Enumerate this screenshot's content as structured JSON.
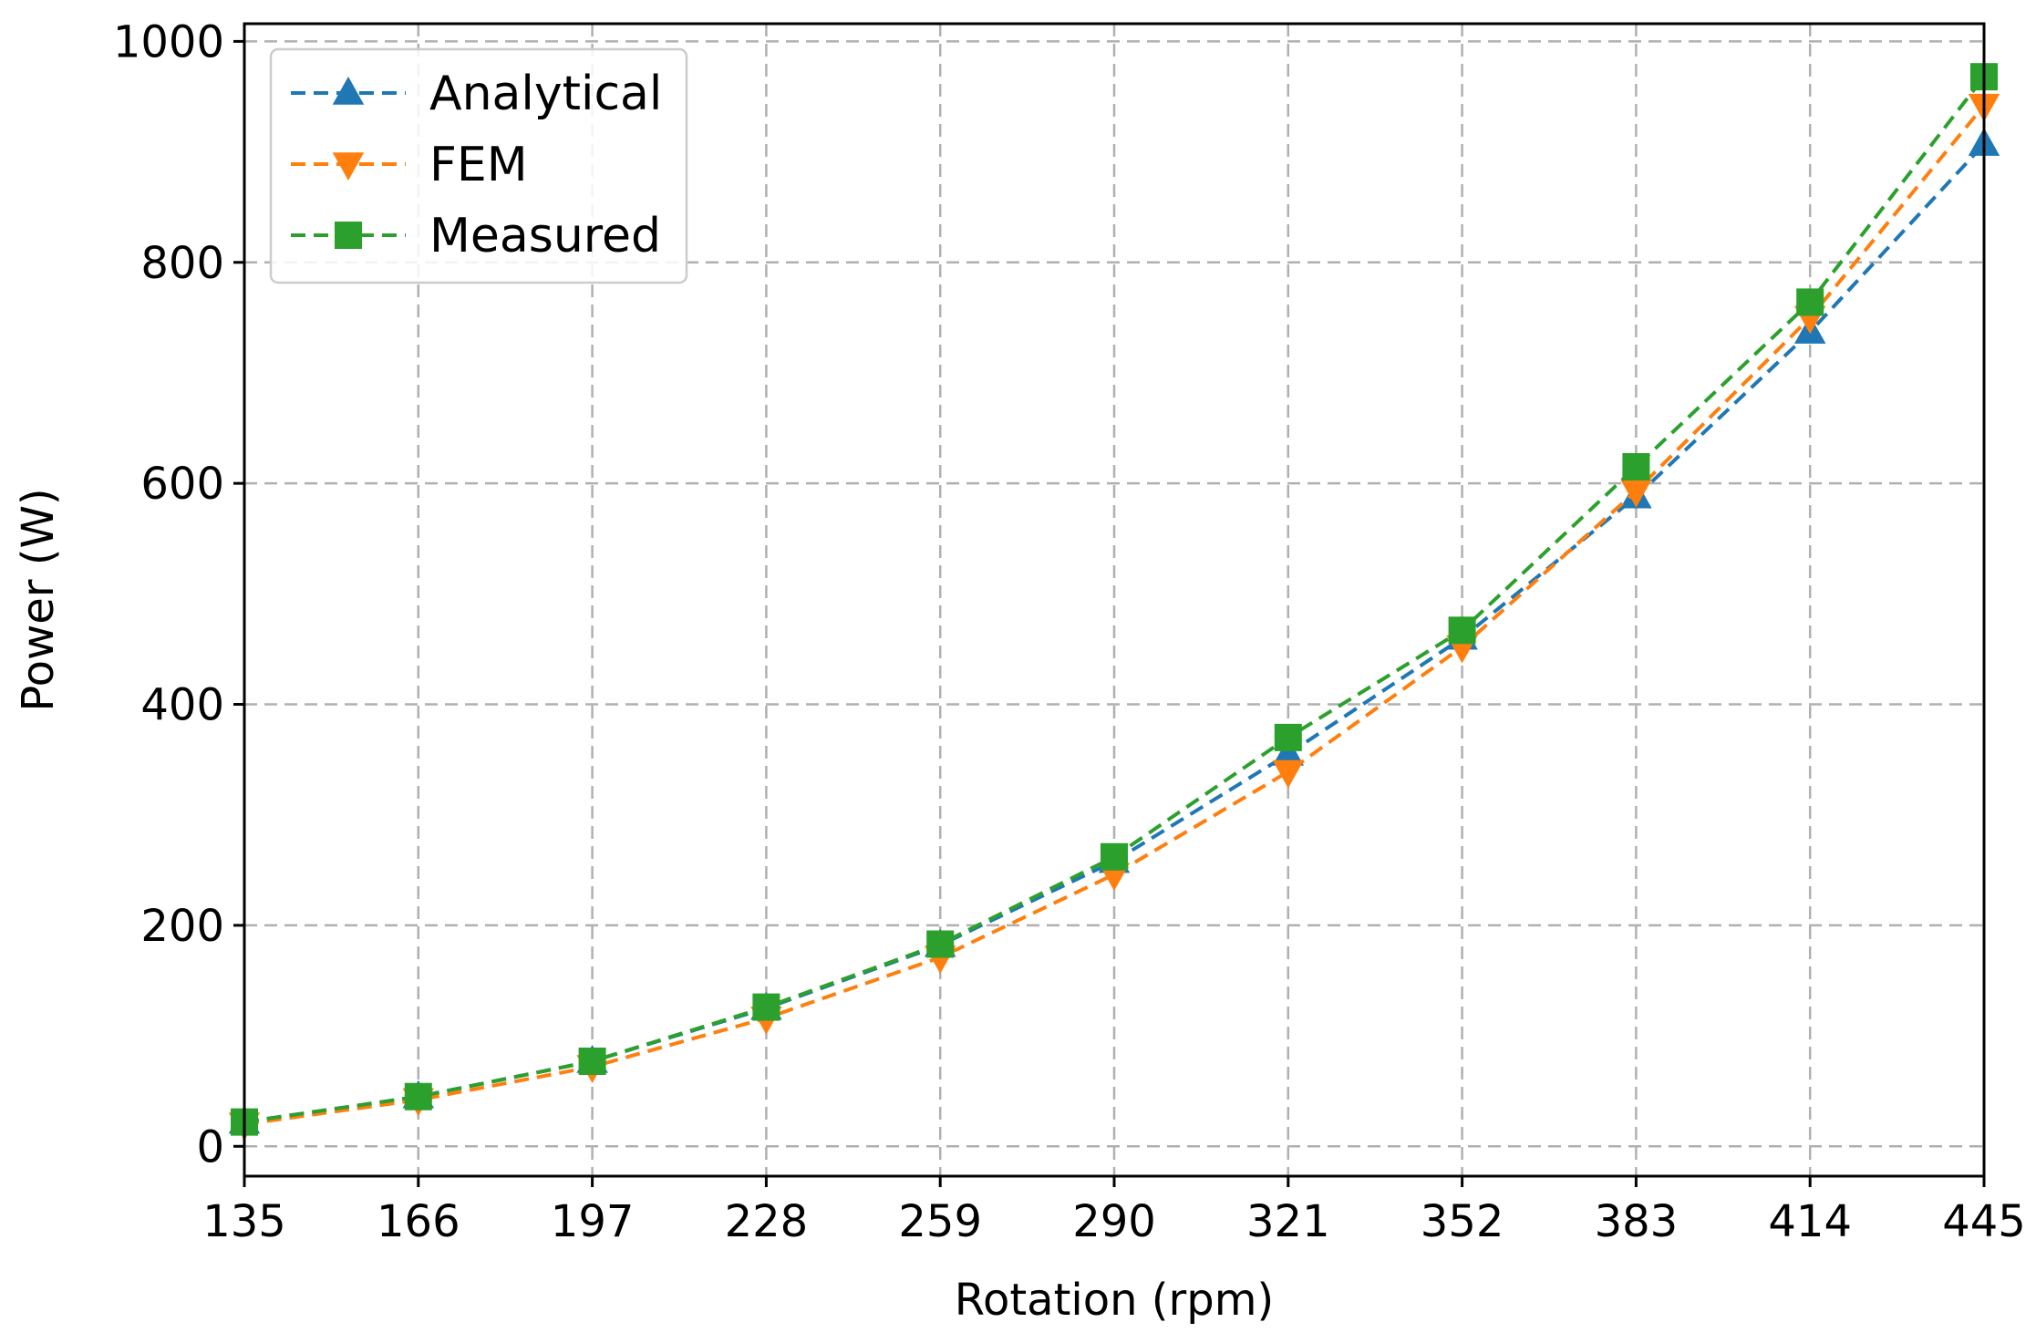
{
  "chart_data": {
    "type": "line",
    "title": "",
    "xlabel": "Rotation (rpm)",
    "ylabel": "Power (W)",
    "x": [
      135,
      166,
      197,
      228,
      259,
      290,
      321,
      352,
      383,
      414,
      445
    ],
    "xticks": [
      "135",
      "166",
      "197",
      "228",
      "259",
      "290",
      "321",
      "352",
      "383",
      "414",
      "445"
    ],
    "yticks": [
      "0",
      "200",
      "400",
      "600",
      "800",
      "1000"
    ],
    "xlim": [
      135,
      445
    ],
    "ylim": [
      -27,
      1016
    ],
    "grid": true,
    "legend_position": "top-left",
    "series": [
      {
        "name": "Analytical",
        "marker": "triangle-up",
        "color": "#1f77b4",
        "values": [
          22,
          45,
          77,
          125,
          182,
          258,
          355,
          460,
          588,
          737,
          907
        ]
      },
      {
        "name": "FEM",
        "marker": "triangle-down",
        "color": "#ff7f0e",
        "values": [
          20,
          42,
          72,
          116,
          171,
          246,
          339,
          452,
          593,
          750,
          942
        ]
      },
      {
        "name": "Measured",
        "marker": "square",
        "color": "#2ca02c",
        "values": [
          22,
          45,
          77,
          126,
          183,
          262,
          370,
          467,
          615,
          764,
          968
        ]
      }
    ]
  }
}
